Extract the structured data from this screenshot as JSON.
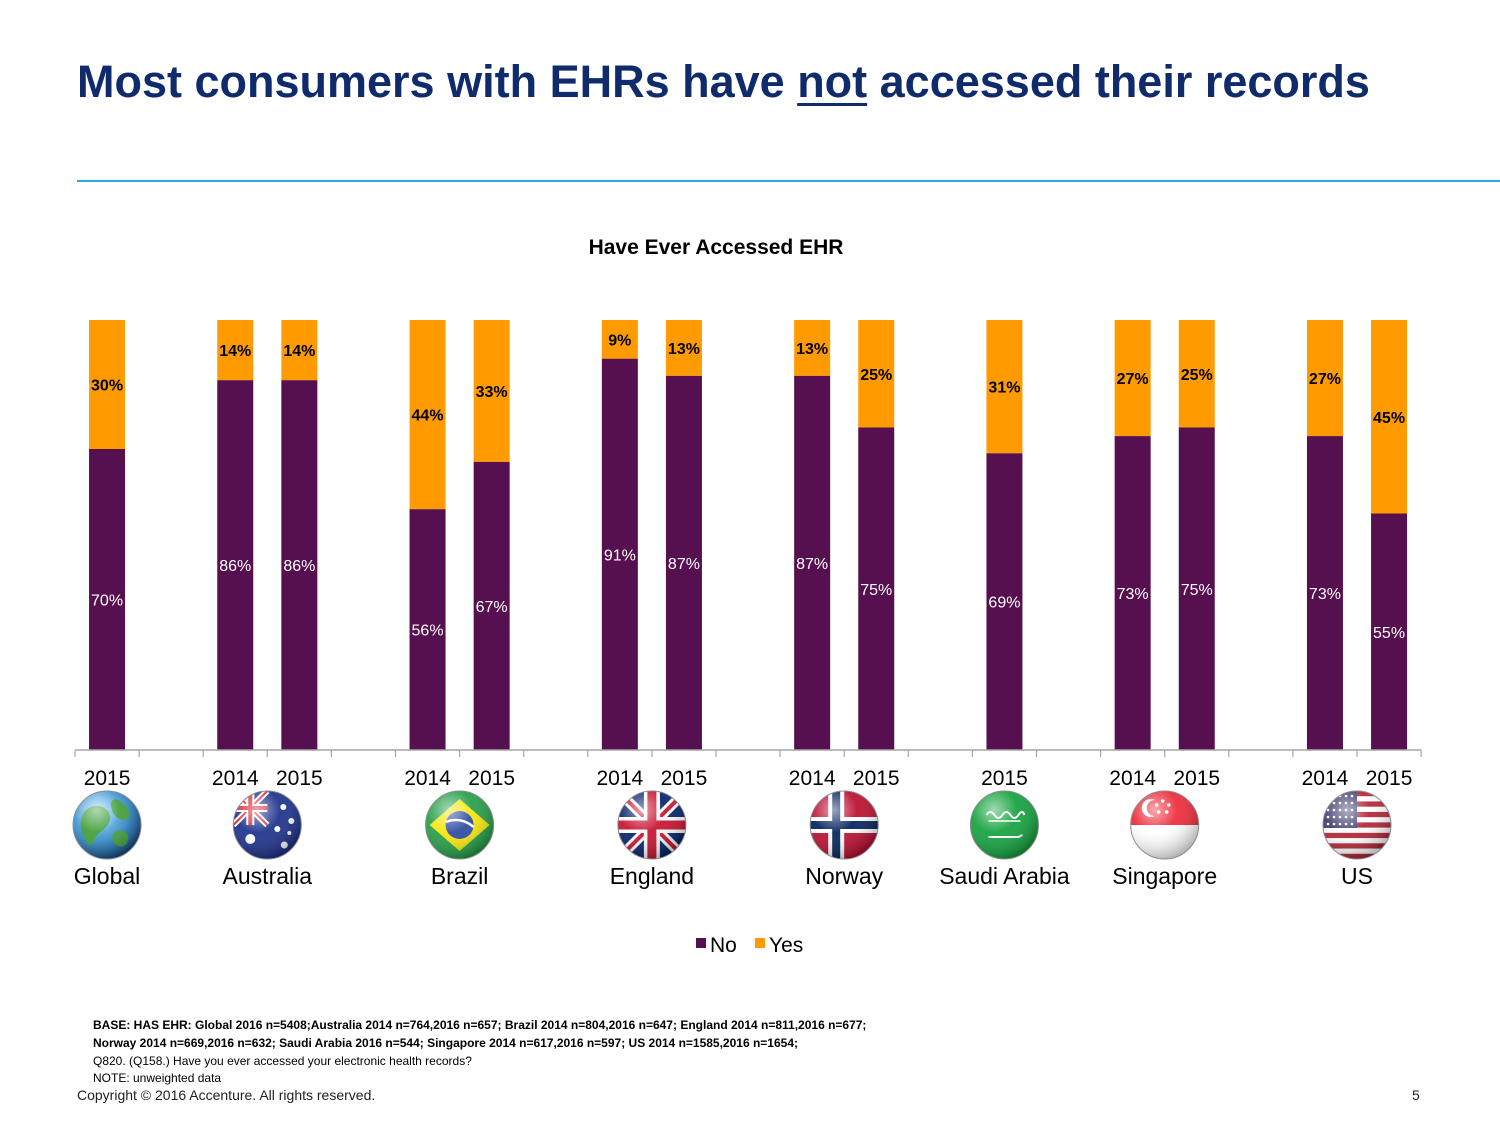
{
  "slide": {
    "title_before": "Most consumers with EHRs have ",
    "title_underlined": "not",
    "title_after": " accessed their records",
    "copyright": "Copyright © 2016 Accenture. All rights reserved.",
    "page_number": "5"
  },
  "footnotes": {
    "base_line1": "BASE: HAS EHR: Global 2016 n=5408;Australia  2014 n=764,2016 n=657; Brazil  2014 n=804,2016 n=647; England  2014 n=811,2016 n=677;",
    "base_line2": "Norway  2014 n=669,2016 n=632; Saudi Arabia 2016 n=544; Singapore  2014 n=617,2016 n=597; US  2014 n=1585,2016 n=1654;",
    "question": "Q820. (Q158.)  Have you ever accessed your electronic health records?",
    "note": "NOTE: unweighted data"
  },
  "chart_data": {
    "type": "bar",
    "stacked": true,
    "title": "Have Ever Accessed EHR",
    "ylim": [
      0,
      100
    ],
    "grid": false,
    "legend_position": "bottom",
    "colors": {
      "No": "#56104f",
      "Yes": "#ff9a00",
      "axis": "#a6a6a6"
    },
    "groups": [
      {
        "name": "Global",
        "flag": "globe-icon",
        "bars": [
          {
            "year": "2015",
            "no": 70,
            "yes": 30
          }
        ]
      },
      {
        "name": "Australia",
        "flag": "australia-flag-icon",
        "bars": [
          {
            "year": "2014",
            "no": 86,
            "yes": 14
          },
          {
            "year": "2015",
            "no": 86,
            "yes": 14
          }
        ]
      },
      {
        "name": "Brazil",
        "flag": "brazil-flag-icon",
        "bars": [
          {
            "year": "2014",
            "no": 56,
            "yes": 44
          },
          {
            "year": "2015",
            "no": 67,
            "yes": 33
          }
        ]
      },
      {
        "name": "England",
        "flag": "uk-flag-icon",
        "bars": [
          {
            "year": "2014",
            "no": 91,
            "yes": 9
          },
          {
            "year": "2015",
            "no": 87,
            "yes": 13
          }
        ]
      },
      {
        "name": "Norway",
        "flag": "norway-flag-icon",
        "bars": [
          {
            "year": "2014",
            "no": 87,
            "yes": 13
          },
          {
            "year": "2015",
            "no": 75,
            "yes": 25
          }
        ]
      },
      {
        "name": "Saudi Arabia",
        "flag": "saudi-arabia-flag-icon",
        "bars": [
          {
            "year": "2015",
            "no": 69,
            "yes": 31
          }
        ]
      },
      {
        "name": "Singapore",
        "flag": "singapore-flag-icon",
        "bars": [
          {
            "year": "2014",
            "no": 73,
            "yes": 27
          },
          {
            "year": "2015",
            "no": 75,
            "yes": 25
          }
        ]
      },
      {
        "name": "US",
        "flag": "us-flag-icon",
        "bars": [
          {
            "year": "2014",
            "no": 73,
            "yes": 27
          },
          {
            "year": "2015",
            "no": 55,
            "yes": 45
          }
        ]
      }
    ],
    "legend": [
      "No",
      "Yes"
    ]
  }
}
